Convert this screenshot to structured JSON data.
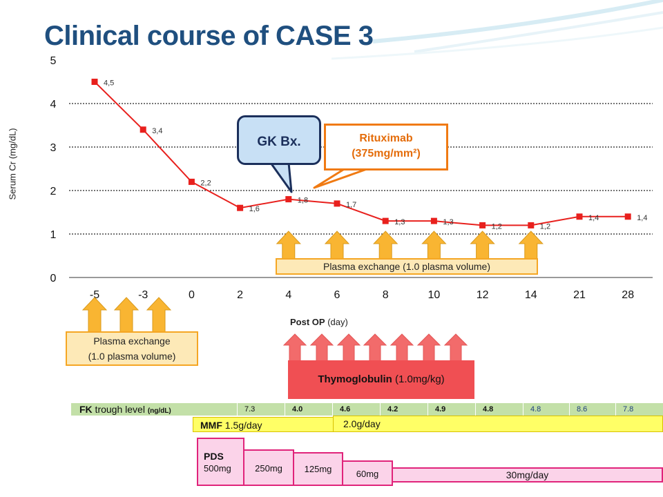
{
  "title": "Clinical course of CASE 3",
  "chart_data": {
    "type": "line",
    "ylabel": "Serum Cr (mg/dL)",
    "xlabel": "Post OP (day)",
    "categories": [
      "-5",
      "-3",
      "0",
      "2",
      "4",
      "6",
      "8",
      "10",
      "12",
      "14",
      "21",
      "28"
    ],
    "values": [
      4.5,
      3.4,
      2.2,
      1.6,
      1.8,
      1.7,
      1.3,
      1.3,
      1.2,
      1.2,
      1.4,
      1.4
    ],
    "data_labels": [
      "4,5",
      "3,4",
      "2,2",
      "1,6",
      "1,8",
      "1,7",
      "1,3",
      "1,3",
      "1,2",
      "1,2",
      "1,4",
      "1,4"
    ],
    "ylim": [
      0,
      5
    ],
    "yticks": [
      "0",
      "1",
      "2",
      "3",
      "4",
      "5"
    ],
    "grid": true,
    "line_color": "#e8201d",
    "marker_color": "#e8201d"
  },
  "annotations": {
    "gk_biopsy": "GK Bx.",
    "rituximab_line1": "Rituximab",
    "rituximab_line2": "(375mg/mm²)",
    "plasma_exchange_post": "Plasma exchange (1.0 plasma volume)",
    "plasma_exchange_pre_line1": "Plasma exchange",
    "plasma_exchange_pre_line2": "(1.0 plasma volume)",
    "thymoglobulin_name": "Thymoglobulin",
    "thymoglobulin_dose": " (1.0mg/kg)",
    "post_op_bold": "Post OP",
    "post_op_unit": " (day)"
  },
  "colors": {
    "title": "#1f4f7f",
    "plasma_arrow": "#f9b532",
    "thymo_arrow": "#f26b6b",
    "rituximab_border": "#f07a12",
    "gk_fill": "#c8e0f5"
  },
  "fk": {
    "label_bold": "FK",
    "label": " trough level ",
    "unit": "(ng/dL)",
    "values": [
      "7.3",
      "4.0",
      "4.6",
      "4.2",
      "4.9",
      "4.8",
      "4.8",
      "8.6",
      "7.8"
    ]
  },
  "mmf": {
    "label_bold": "MMF",
    "dose1": " 1.5g/day",
    "dose2": "2.0g/day"
  },
  "pds": {
    "label_bold": "PDS",
    "dose0": "500mg",
    "dose1": "250mg",
    "dose2": "125mg",
    "dose3": "60mg",
    "dose4": "30mg/day"
  }
}
